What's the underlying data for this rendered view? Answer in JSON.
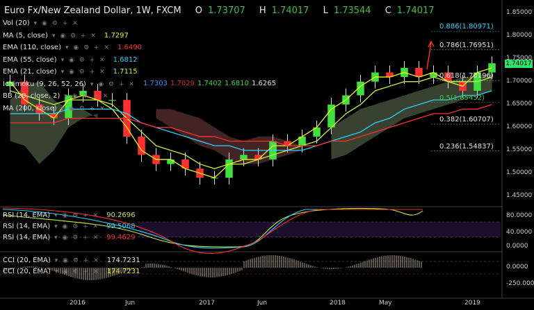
{
  "header": {
    "symbol": "Euro Fx/New Zealand Dollar, 1W, FXCM",
    "open_label": "O",
    "open": "1.73707",
    "high_label": "H",
    "high": "1.74017",
    "low_label": "L",
    "low": "1.73544",
    "close_label": "C",
    "close": "1.74017"
  },
  "indicators": [
    {
      "label": "Vol (20)",
      "value": "",
      "color": "#dddddd"
    },
    {
      "label": "MA (5, close)",
      "value": "1.7297",
      "color": "#f0f020"
    },
    {
      "label": "EMA (110, close)",
      "value": "1.6490",
      "color": "#ff3030"
    },
    {
      "label": "EMA (55, close)",
      "value": "1.6812",
      "color": "#30d0ff"
    },
    {
      "label": "EMA (21, close)",
      "value": "1.7115",
      "color": "#c0f040"
    },
    {
      "label": "Ichimoku (9, 26, 52, 26)",
      "value": "",
      "color": "#dddddd"
    },
    {
      "label": "BB (20, close, 2)",
      "value": "",
      "color": "#dddddd"
    },
    {
      "label": "MA (200, close)",
      "value": "",
      "color": "#dddddd"
    }
  ],
  "ichimoku_values": [
    {
      "v": "1.7303",
      "color": "#3a8cff"
    },
    {
      "v": "1.7029",
      "color": "#d03030"
    },
    {
      "v": "1.7402",
      "color": "#40d040"
    },
    {
      "v": "1.6810",
      "color": "#40d040"
    },
    {
      "v": "1.6265",
      "color": "#e0e0e0"
    }
  ],
  "rsi_panels": [
    {
      "label": "RSI (14, EMA)",
      "value": "90.2696",
      "color": "#c0e060"
    },
    {
      "label": "RSI (14, EMA)",
      "value": "99.5068",
      "color": "#30d0ff"
    },
    {
      "label": "RSI (14, EMA)",
      "value": "99.4629",
      "color": "#ff3030"
    }
  ],
  "cci_panels": [
    {
      "label": "CCI (20, EMA)",
      "value": "174.7231",
      "color": "#e0e0e0"
    },
    {
      "label": "CCI (20, EMA)",
      "value": "174.7231",
      "color": "#f0f020"
    }
  ],
  "fib_levels": [
    {
      "label": "0.886(1.80971)",
      "price": 1.80971,
      "color": "#30d0ff"
    },
    {
      "label": "0.786(1.76951)",
      "price": 1.76951,
      "color": "#e0e0e0"
    },
    {
      "label": "0.618(1.70196)",
      "price": 1.70196,
      "color": "#e0e0e0"
    },
    {
      "label": "0.5(1.65452)",
      "price": 1.65452,
      "color": "#40c040"
    },
    {
      "label": "0.382(1.60707)",
      "price": 1.60707,
      "color": "#e0e0e0"
    },
    {
      "label": "0.236(1.54837)",
      "price": 1.54837,
      "color": "#e0e0e0"
    }
  ],
  "last_price": "1.74017",
  "y_axis_main": [
    "1.85000",
    "1.80000",
    "1.75000",
    "1.70000",
    "1.65000",
    "1.60000",
    "1.55000",
    "1.50000",
    "1.45000"
  ],
  "y_axis_rsi": [
    "80.0000",
    "40.0000",
    "0.0000"
  ],
  "y_axis_cci": [
    "0.0000",
    "-250.0000"
  ],
  "x_axis": [
    "2016",
    "Jun",
    "2017",
    "Jun",
    "2018",
    "May",
    "2019"
  ],
  "colors": {
    "bull": "#40e040",
    "bear": "#ff3030",
    "ma5": "#f0f020",
    "ema110": "#ff3030",
    "ema55": "#30d0ff",
    "ema21": "#c0f040",
    "kumo_bull": "#4a5a40",
    "kumo_bear": "#5a3030"
  },
  "chart_data": {
    "type": "candlestick",
    "title": "Euro Fx/New Zealand Dollar, 1W, FXCM",
    "ylim": [
      1.43,
      1.86
    ],
    "x": [
      "2015-10",
      "2015-11",
      "2015-12",
      "2016-01",
      "2016-02",
      "2016-03",
      "2016-04",
      "2016-05",
      "2016-06",
      "2016-07",
      "2016-08",
      "2016-09",
      "2016-10",
      "2016-11",
      "2016-12",
      "2017-01",
      "2017-02",
      "2017-03",
      "2017-04",
      "2017-05",
      "2017-06",
      "2017-07",
      "2017-08",
      "2017-09",
      "2017-10",
      "2017-11",
      "2017-12",
      "2018-01",
      "2018-02",
      "2018-03",
      "2018-04",
      "2018-05",
      "2018-06",
      "2018-07"
    ],
    "close": [
      1.7,
      1.65,
      1.63,
      1.62,
      1.67,
      1.68,
      1.66,
      1.66,
      1.58,
      1.54,
      1.52,
      1.53,
      1.51,
      1.49,
      1.49,
      1.53,
      1.54,
      1.53,
      1.57,
      1.56,
      1.58,
      1.6,
      1.65,
      1.67,
      1.7,
      1.72,
      1.71,
      1.73,
      1.71,
      1.72,
      1.7,
      1.68,
      1.72,
      1.74
    ],
    "series": [
      {
        "name": "MA (5, close)",
        "values": [
          1.7,
          1.66,
          1.64,
          1.62,
          1.66,
          1.67,
          1.66,
          1.64,
          1.6,
          1.55,
          1.53,
          1.53,
          1.51,
          1.5,
          1.49,
          1.52,
          1.53,
          1.53,
          1.56,
          1.56,
          1.58,
          1.6,
          1.64,
          1.66,
          1.69,
          1.71,
          1.71,
          1.72,
          1.71,
          1.72,
          1.7,
          1.69,
          1.72,
          1.73
        ]
      },
      {
        "name": "EMA (21, close)",
        "values": [
          1.68,
          1.67,
          1.66,
          1.65,
          1.66,
          1.66,
          1.66,
          1.65,
          1.62,
          1.59,
          1.56,
          1.55,
          1.54,
          1.52,
          1.51,
          1.52,
          1.52,
          1.53,
          1.54,
          1.55,
          1.56,
          1.57,
          1.6,
          1.63,
          1.65,
          1.68,
          1.69,
          1.7,
          1.7,
          1.71,
          1.7,
          1.7,
          1.7,
          1.71
        ]
      },
      {
        "name": "EMA (55, close)",
        "values": [
          1.63,
          1.63,
          1.63,
          1.63,
          1.64,
          1.64,
          1.64,
          1.64,
          1.63,
          1.61,
          1.6,
          1.59,
          1.58,
          1.57,
          1.56,
          1.56,
          1.55,
          1.55,
          1.55,
          1.55,
          1.55,
          1.56,
          1.57,
          1.58,
          1.59,
          1.61,
          1.62,
          1.64,
          1.65,
          1.66,
          1.66,
          1.67,
          1.67,
          1.68
        ]
      },
      {
        "name": "EMA (110, close)",
        "values": [
          1.61,
          1.61,
          1.61,
          1.61,
          1.62,
          1.62,
          1.62,
          1.62,
          1.62,
          1.61,
          1.6,
          1.6,
          1.59,
          1.58,
          1.58,
          1.57,
          1.57,
          1.57,
          1.57,
          1.56,
          1.56,
          1.56,
          1.57,
          1.57,
          1.58,
          1.59,
          1.6,
          1.61,
          1.62,
          1.63,
          1.63,
          1.64,
          1.64,
          1.65
        ]
      }
    ]
  }
}
